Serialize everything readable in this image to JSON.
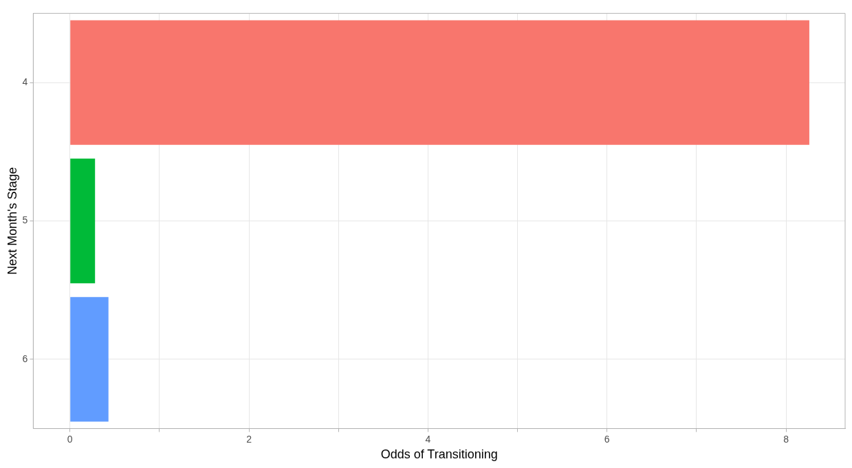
{
  "chart_data": {
    "type": "bar",
    "orientation": "horizontal",
    "xlabel": "Odds of Transitioning",
    "ylabel": "Next Month's Stage",
    "categories": [
      "4",
      "5",
      "6"
    ],
    "values": [
      8.26,
      0.28,
      0.43
    ],
    "colors": [
      "#f8766d",
      "#00ba38",
      "#619cff"
    ],
    "xlim": [
      -0.41,
      8.66
    ],
    "xticks": [
      0,
      {
        "value": 1,
        "label": null
      },
      2,
      {
        "value": 3,
        "label": null
      },
      4,
      {
        "value": 5,
        "label": null
      },
      6,
      {
        "value": 7,
        "label": null
      },
      8
    ],
    "grid": true,
    "legend": false
  }
}
